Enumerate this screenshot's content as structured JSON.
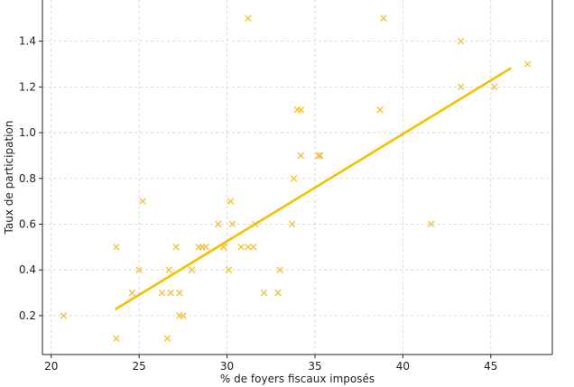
{
  "chart_data": {
    "type": "scatter",
    "xlabel": "% de foyers fiscaux imposés",
    "ylabel": "Taux de participation",
    "xlim": [
      19.5,
      48.5
    ],
    "ylim": [
      0.03,
      1.58
    ],
    "xticks": [
      20,
      25,
      30,
      35,
      40,
      45
    ],
    "yticks": [
      0.2,
      0.4,
      0.6,
      0.8,
      1.0,
      1.2,
      1.4
    ],
    "ytick_labels": [
      "0.2",
      "0.4",
      "0.6",
      "0.8",
      "1.0",
      "1.2",
      "1.4"
    ],
    "grid": true,
    "marker_color": "#f5c242",
    "line_color": "#f5c000",
    "points": [
      [
        20.7,
        0.2
      ],
      [
        23.7,
        0.1
      ],
      [
        23.7,
        0.5
      ],
      [
        24.6,
        0.3
      ],
      [
        25.0,
        0.4
      ],
      [
        25.2,
        0.7
      ],
      [
        26.3,
        0.3
      ],
      [
        26.6,
        0.1
      ],
      [
        26.7,
        0.4
      ],
      [
        26.8,
        0.3
      ],
      [
        27.1,
        0.5
      ],
      [
        27.3,
        0.2
      ],
      [
        27.3,
        0.3
      ],
      [
        27.5,
        0.2
      ],
      [
        28.0,
        0.4
      ],
      [
        28.4,
        0.5
      ],
      [
        28.6,
        0.5
      ],
      [
        28.8,
        0.5
      ],
      [
        29.5,
        0.6
      ],
      [
        29.8,
        0.5
      ],
      [
        29.8,
        0.5
      ],
      [
        30.1,
        0.4
      ],
      [
        30.2,
        0.7
      ],
      [
        30.3,
        0.6
      ],
      [
        30.8,
        0.5
      ],
      [
        31.2,
        0.5
      ],
      [
        31.2,
        1.5
      ],
      [
        31.5,
        0.5
      ],
      [
        31.6,
        0.6
      ],
      [
        32.1,
        0.3
      ],
      [
        32.9,
        0.3
      ],
      [
        33.0,
        0.4
      ],
      [
        33.7,
        0.6
      ],
      [
        33.8,
        0.8
      ],
      [
        34.0,
        1.1
      ],
      [
        34.2,
        1.1
      ],
      [
        34.2,
        0.9
      ],
      [
        35.2,
        0.9
      ],
      [
        35.3,
        0.9
      ],
      [
        38.7,
        1.1
      ],
      [
        38.9,
        1.5
      ],
      [
        41.6,
        0.6
      ],
      [
        43.3,
        1.2
      ],
      [
        43.3,
        1.4
      ],
      [
        45.2,
        1.2
      ],
      [
        47.1,
        1.3
      ]
    ],
    "trendline": {
      "x": [
        23.7,
        46.1
      ],
      "y": [
        0.23,
        1.28
      ]
    }
  }
}
